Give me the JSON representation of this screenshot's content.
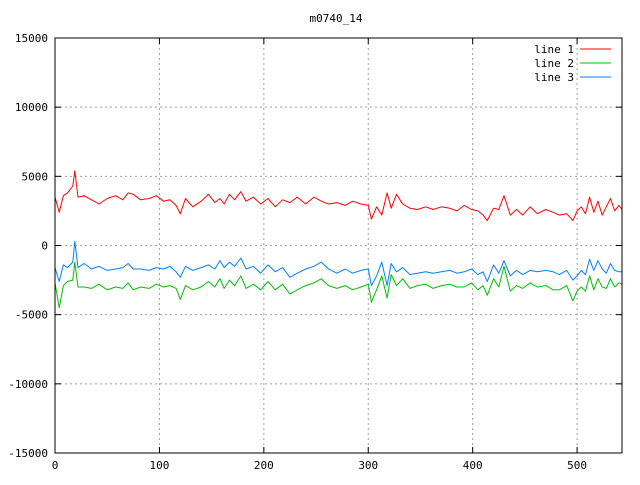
{
  "chart_data": {
    "type": "line",
    "title": "m0740_14",
    "xlabel": "",
    "ylabel": "",
    "xlim": [
      0,
      543
    ],
    "ylim": [
      -15000,
      15000
    ],
    "xticks": [
      0,
      100,
      200,
      300,
      400,
      500
    ],
    "xtick_labels": [
      "0",
      "100",
      "200",
      "300",
      "400",
      "500"
    ],
    "yticks": [
      -15000,
      -10000,
      -5000,
      0,
      5000,
      10000,
      15000
    ],
    "ytick_labels": [
      "-15000",
      "-10000",
      "-5000",
      "0",
      "5000",
      "10000",
      "15000"
    ],
    "grid": true,
    "legend_position": "top-right",
    "series": [
      {
        "name": "line 1",
        "color": "#ff0000",
        "x": [
          0,
          4,
          8,
          12,
          17,
          19,
          22,
          28,
          35,
          42,
          50,
          58,
          65,
          70,
          75,
          82,
          90,
          97,
          104,
          110,
          116,
          120,
          125,
          132,
          140,
          147,
          153,
          158,
          162,
          167,
          172,
          178,
          183,
          190,
          197,
          204,
          211,
          218,
          225,
          232,
          240,
          248,
          255,
          262,
          270,
          278,
          285,
          293,
          300,
          303,
          308,
          313,
          318,
          322,
          327,
          333,
          340,
          347,
          355,
          362,
          370,
          378,
          385,
          392,
          399,
          405,
          410,
          414,
          420,
          425,
          430,
          436,
          442,
          448,
          455,
          462,
          470,
          477,
          483,
          490,
          496,
          500,
          504,
          508,
          512,
          516,
          520,
          524,
          528,
          532,
          536,
          540,
          543
        ],
        "y": [
          3500,
          2400,
          3600,
          3800,
          4300,
          5400,
          3500,
          3600,
          3300,
          3000,
          3400,
          3600,
          3300,
          3800,
          3700,
          3300,
          3400,
          3600,
          3200,
          3300,
          2900,
          2300,
          3400,
          2800,
          3200,
          3700,
          3100,
          3400,
          3000,
          3700,
          3300,
          3900,
          3200,
          3500,
          3000,
          3400,
          2800,
          3300,
          3100,
          3500,
          3000,
          3500,
          3200,
          3000,
          3100,
          2900,
          3200,
          3000,
          2900,
          1900,
          2800,
          2200,
          3800,
          2700,
          3700,
          3000,
          2700,
          2600,
          2800,
          2600,
          2800,
          2700,
          2500,
          2900,
          2600,
          2500,
          2200,
          1800,
          2700,
          2600,
          3600,
          2200,
          2600,
          2200,
          2800,
          2300,
          2600,
          2400,
          2200,
          2300,
          1800,
          2500,
          2800,
          2300,
          3500,
          2400,
          3200,
          2200,
          2800,
          3400,
          2500,
          2900,
          2600
        ]
      },
      {
        "name": "line 2",
        "color": "#00c000",
        "x": [
          0,
          4,
          8,
          12,
          17,
          19,
          22,
          28,
          35,
          42,
          50,
          58,
          65,
          70,
          75,
          82,
          90,
          97,
          104,
          110,
          116,
          120,
          125,
          132,
          140,
          147,
          153,
          158,
          162,
          167,
          172,
          178,
          183,
          190,
          197,
          204,
          211,
          218,
          225,
          232,
          240,
          248,
          255,
          262,
          270,
          278,
          285,
          293,
          300,
          303,
          308,
          313,
          318,
          322,
          327,
          333,
          340,
          347,
          355,
          362,
          370,
          378,
          385,
          392,
          399,
          405,
          410,
          414,
          420,
          425,
          430,
          436,
          442,
          448,
          455,
          462,
          470,
          477,
          483,
          490,
          496,
          500,
          504,
          508,
          512,
          516,
          520,
          524,
          528,
          532,
          536,
          540,
          543
        ],
        "y": [
          -2700,
          -4500,
          -2900,
          -2600,
          -2500,
          -1200,
          -3000,
          -3000,
          -3100,
          -2800,
          -3200,
          -3000,
          -3100,
          -2700,
          -3200,
          -3000,
          -3100,
          -2800,
          -3000,
          -2900,
          -3100,
          -3900,
          -2900,
          -3200,
          -3000,
          -2600,
          -3000,
          -2400,
          -3100,
          -2500,
          -2900,
          -2200,
          -3100,
          -2800,
          -3200,
          -2600,
          -3200,
          -2800,
          -3500,
          -3200,
          -2900,
          -2700,
          -2400,
          -2900,
          -3100,
          -2900,
          -3200,
          -3000,
          -2800,
          -4100,
          -3200,
          -2200,
          -3800,
          -2100,
          -2900,
          -2400,
          -3100,
          -2900,
          -2800,
          -3100,
          -2900,
          -2800,
          -3000,
          -3000,
          -2700,
          -3200,
          -2900,
          -3600,
          -2400,
          -3000,
          -1500,
          -3300,
          -2900,
          -3100,
          -2700,
          -3000,
          -2900,
          -3200,
          -3200,
          -2900,
          -4000,
          -3300,
          -3000,
          -3300,
          -2200,
          -3200,
          -2400,
          -3000,
          -3100,
          -2400,
          -3000,
          -2700,
          -2800
        ]
      },
      {
        "name": "line 3",
        "color": "#0080ff",
        "x": [
          0,
          4,
          8,
          12,
          17,
          19,
          22,
          28,
          35,
          42,
          50,
          58,
          65,
          70,
          75,
          82,
          90,
          97,
          104,
          110,
          116,
          120,
          125,
          132,
          140,
          147,
          153,
          158,
          162,
          167,
          172,
          178,
          183,
          190,
          197,
          204,
          211,
          218,
          225,
          232,
          240,
          248,
          255,
          262,
          270,
          278,
          285,
          293,
          300,
          303,
          308,
          313,
          318,
          322,
          327,
          333,
          340,
          347,
          355,
          362,
          370,
          378,
          385,
          392,
          399,
          405,
          410,
          414,
          420,
          425,
          430,
          436,
          442,
          448,
          455,
          462,
          470,
          477,
          483,
          490,
          496,
          500,
          504,
          508,
          512,
          516,
          520,
          524,
          528,
          532,
          536,
          540,
          543
        ],
        "y": [
          -1600,
          -2600,
          -1400,
          -1600,
          -1200,
          300,
          -1600,
          -1300,
          -1700,
          -1500,
          -1800,
          -1700,
          -1600,
          -1300,
          -1700,
          -1700,
          -1800,
          -1600,
          -1700,
          -1500,
          -1900,
          -2300,
          -1500,
          -1800,
          -1600,
          -1400,
          -1700,
          -1100,
          -1600,
          -1200,
          -1500,
          -900,
          -1700,
          -1500,
          -2000,
          -1400,
          -1900,
          -1600,
          -2300,
          -2000,
          -1700,
          -1500,
          -1200,
          -1700,
          -2000,
          -1700,
          -2000,
          -1800,
          -1700,
          -2900,
          -2200,
          -1200,
          -2900,
          -1300,
          -1900,
          -1600,
          -2100,
          -2000,
          -1900,
          -2000,
          -1900,
          -1800,
          -2000,
          -1900,
          -1700,
          -2100,
          -1900,
          -2600,
          -1400,
          -2000,
          -1100,
          -2200,
          -1800,
          -2100,
          -1800,
          -1900,
          -1800,
          -1900,
          -2100,
          -1800,
          -2500,
          -2200,
          -1800,
          -2100,
          -1000,
          -1800,
          -1100,
          -1700,
          -2000,
          -1300,
          -1800,
          -1900,
          -1900
        ]
      }
    ]
  }
}
